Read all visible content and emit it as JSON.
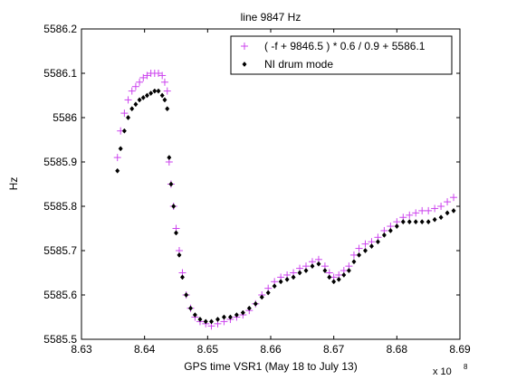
{
  "chart_data": {
    "type": "scatter",
    "title": "line 9847 Hz",
    "xlabel": "GPS time VSR1 (May 18 to July 13)",
    "ylabel": "Hz",
    "x_multiplier_label": "x 10",
    "x_multiplier_exponent": "8",
    "xlim": [
      8.63,
      8.69
    ],
    "ylim": [
      5585.5,
      5586.2
    ],
    "xticks": [
      8.63,
      8.64,
      8.65,
      8.66,
      8.67,
      8.68,
      8.69
    ],
    "xtick_labels": [
      "8.63",
      "8.64",
      "8.65",
      "8.66",
      "8.67",
      "8.68",
      "8.69"
    ],
    "yticks": [
      5585.5,
      5585.6,
      5585.7,
      5585.8,
      5585.9,
      5586.0,
      5586.1,
      5586.2
    ],
    "ytick_labels": [
      "5585.5",
      "5585.6",
      "5585.7",
      "5585.8",
      "5585.9",
      "5586",
      "5586.1",
      "5586.2"
    ],
    "grid": false,
    "legend_position": "top-right",
    "series": [
      {
        "name": "( -f + 9846.5 ) * 0.6 / 0.9 + 5586.1",
        "marker": "plus",
        "color": "#cc44ee",
        "points": [
          [
            8.6357,
            5585.91
          ],
          [
            8.6362,
            5585.97
          ],
          [
            8.6368,
            5586.01
          ],
          [
            8.6374,
            5586.04
          ],
          [
            8.638,
            5586.06
          ],
          [
            8.6386,
            5586.07
          ],
          [
            8.6392,
            5586.08
          ],
          [
            8.6398,
            5586.09
          ],
          [
            8.6404,
            5586.095
          ],
          [
            8.641,
            5586.1
          ],
          [
            8.6416,
            5586.1
          ],
          [
            8.6422,
            5586.1
          ],
          [
            8.6428,
            5586.095
          ],
          [
            8.6432,
            5586.08
          ],
          [
            8.6436,
            5586.06
          ],
          [
            8.6439,
            5585.9
          ],
          [
            8.6442,
            5585.85
          ],
          [
            8.6446,
            5585.8
          ],
          [
            8.645,
            5585.75
          ],
          [
            8.6455,
            5585.7
          ],
          [
            8.646,
            5585.65
          ],
          [
            8.6466,
            5585.6
          ],
          [
            8.6473,
            5585.57
          ],
          [
            8.648,
            5585.55
          ],
          [
            8.6488,
            5585.54
          ],
          [
            8.6497,
            5585.535
          ],
          [
            8.6506,
            5585.53
          ],
          [
            8.6516,
            5585.535
          ],
          [
            8.6526,
            5585.54
          ],
          [
            8.6536,
            5585.545
          ],
          [
            8.6546,
            5585.55
          ],
          [
            8.6556,
            5585.555
          ],
          [
            8.6566,
            5585.565
          ],
          [
            8.6576,
            5585.58
          ],
          [
            8.6586,
            5585.6
          ],
          [
            8.6596,
            5585.615
          ],
          [
            8.6606,
            5585.63
          ],
          [
            8.6616,
            5585.64
          ],
          [
            8.6626,
            5585.645
          ],
          [
            8.6636,
            5585.65
          ],
          [
            8.6646,
            5585.66
          ],
          [
            8.6656,
            5585.665
          ],
          [
            8.6666,
            5585.675
          ],
          [
            8.6676,
            5585.68
          ],
          [
            8.6686,
            5585.665
          ],
          [
            8.6693,
            5585.65
          ],
          [
            8.67,
            5585.64
          ],
          [
            8.6708,
            5585.645
          ],
          [
            8.6716,
            5585.655
          ],
          [
            8.6724,
            5585.665
          ],
          [
            8.6732,
            5585.69
          ],
          [
            8.674,
            5585.705
          ],
          [
            8.675,
            5585.715
          ],
          [
            8.676,
            5585.72
          ],
          [
            8.677,
            5585.73
          ],
          [
            8.678,
            5585.745
          ],
          [
            8.679,
            5585.755
          ],
          [
            8.68,
            5585.765
          ],
          [
            8.681,
            5585.775
          ],
          [
            8.682,
            5585.78
          ],
          [
            8.683,
            5585.785
          ],
          [
            8.684,
            5585.79
          ],
          [
            8.685,
            5585.79
          ],
          [
            8.686,
            5585.795
          ],
          [
            8.687,
            5585.8
          ],
          [
            8.688,
            5585.81
          ],
          [
            8.689,
            5585.82
          ]
        ]
      },
      {
        "name": "NI drum mode",
        "marker": "diamond",
        "color": "#000000",
        "points": [
          [
            8.6357,
            5585.88
          ],
          [
            8.6362,
            5585.93
          ],
          [
            8.6368,
            5585.97
          ],
          [
            8.6374,
            5586.0
          ],
          [
            8.638,
            5586.02
          ],
          [
            8.6386,
            5586.03
          ],
          [
            8.6392,
            5586.04
          ],
          [
            8.6398,
            5586.045
          ],
          [
            8.6404,
            5586.05
          ],
          [
            8.641,
            5586.055
          ],
          [
            8.6416,
            5586.06
          ],
          [
            8.6422,
            5586.06
          ],
          [
            8.6428,
            5586.05
          ],
          [
            8.6432,
            5586.04
          ],
          [
            8.6436,
            5586.02
          ],
          [
            8.6439,
            5585.91
          ],
          [
            8.6442,
            5585.85
          ],
          [
            8.6446,
            5585.8
          ],
          [
            8.645,
            5585.74
          ],
          [
            8.6455,
            5585.69
          ],
          [
            8.646,
            5585.64
          ],
          [
            8.6466,
            5585.6
          ],
          [
            8.6473,
            5585.57
          ],
          [
            8.648,
            5585.555
          ],
          [
            8.6488,
            5585.545
          ],
          [
            8.6497,
            5585.54
          ],
          [
            8.6506,
            5585.54
          ],
          [
            8.6516,
            5585.545
          ],
          [
            8.6526,
            5585.55
          ],
          [
            8.6536,
            5585.55
          ],
          [
            8.6546,
            5585.555
          ],
          [
            8.6556,
            5585.56
          ],
          [
            8.6566,
            5585.57
          ],
          [
            8.6576,
            5585.58
          ],
          [
            8.6586,
            5585.595
          ],
          [
            8.6596,
            5585.605
          ],
          [
            8.6606,
            5585.62
          ],
          [
            8.6616,
            5585.63
          ],
          [
            8.6626,
            5585.635
          ],
          [
            8.6636,
            5585.64
          ],
          [
            8.6646,
            5585.65
          ],
          [
            8.6656,
            5585.655
          ],
          [
            8.6666,
            5585.665
          ],
          [
            8.6676,
            5585.67
          ],
          [
            8.6686,
            5585.655
          ],
          [
            8.6693,
            5585.64
          ],
          [
            8.67,
            5585.63
          ],
          [
            8.6708,
            5585.635
          ],
          [
            8.6716,
            5585.645
          ],
          [
            8.6724,
            5585.655
          ],
          [
            8.6732,
            5585.675
          ],
          [
            8.674,
            5585.69
          ],
          [
            8.675,
            5585.7
          ],
          [
            8.676,
            5585.71
          ],
          [
            8.677,
            5585.72
          ],
          [
            8.678,
            5585.735
          ],
          [
            8.679,
            5585.745
          ],
          [
            8.68,
            5585.755
          ],
          [
            8.681,
            5585.765
          ],
          [
            8.682,
            5585.765
          ],
          [
            8.683,
            5585.765
          ],
          [
            8.684,
            5585.765
          ],
          [
            8.685,
            5585.765
          ],
          [
            8.686,
            5585.77
          ],
          [
            8.687,
            5585.775
          ],
          [
            8.688,
            5585.785
          ],
          [
            8.689,
            5585.79
          ]
        ]
      }
    ]
  }
}
